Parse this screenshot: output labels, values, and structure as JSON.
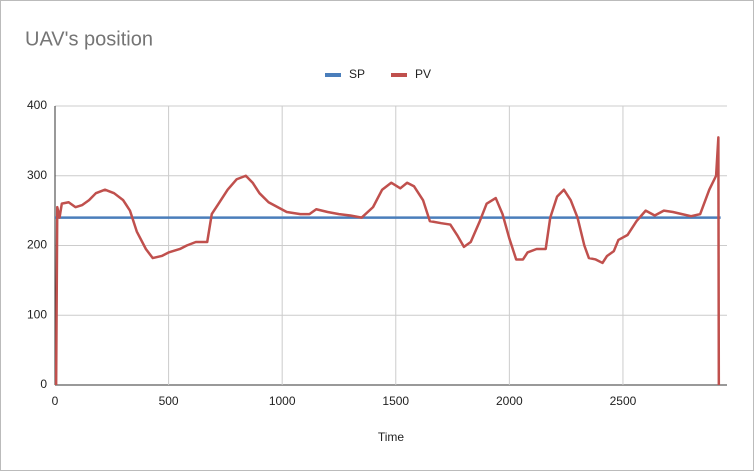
{
  "chart_data": {
    "type": "line",
    "title": "UAV's position",
    "x_label": "Time",
    "series": [
      {
        "name": "SP",
        "color": "#4a7ebb",
        "x": [
          0,
          2930
        ],
        "values": [
          240,
          240
        ]
      },
      {
        "name": "PV",
        "color": "#c0504d",
        "x": [
          5,
          10,
          20,
          30,
          60,
          90,
          120,
          150,
          180,
          220,
          260,
          300,
          330,
          360,
          400,
          430,
          470,
          500,
          550,
          580,
          620,
          670,
          690,
          720,
          760,
          800,
          840,
          870,
          900,
          940,
          980,
          1020,
          1080,
          1120,
          1150,
          1200,
          1250,
          1300,
          1350,
          1400,
          1440,
          1480,
          1520,
          1550,
          1580,
          1620,
          1650,
          1700,
          1740,
          1770,
          1800,
          1830,
          1870,
          1900,
          1940,
          1970,
          2000,
          2030,
          2060,
          2080,
          2120,
          2160,
          2180,
          2210,
          2240,
          2270,
          2300,
          2330,
          2350,
          2380,
          2410,
          2430,
          2460,
          2480,
          2520,
          2560,
          2600,
          2640,
          2680,
          2720,
          2760,
          2800,
          2840,
          2880,
          2910,
          2920,
          2922
        ],
        "values": [
          0,
          255,
          240,
          260,
          262,
          255,
          258,
          265,
          275,
          280,
          275,
          265,
          250,
          220,
          195,
          182,
          185,
          190,
          195,
          200,
          205,
          205,
          245,
          260,
          280,
          295,
          300,
          290,
          275,
          262,
          255,
          248,
          245,
          245,
          252,
          248,
          245,
          243,
          240,
          255,
          280,
          290,
          282,
          290,
          285,
          265,
          235,
          232,
          230,
          215,
          198,
          205,
          235,
          260,
          268,
          245,
          210,
          180,
          180,
          190,
          195,
          195,
          240,
          270,
          280,
          265,
          240,
          200,
          182,
          180,
          175,
          185,
          192,
          208,
          215,
          235,
          250,
          243,
          250,
          248,
          245,
          242,
          245,
          280,
          300,
          355,
          0
        ]
      }
    ],
    "xlim": [
      0,
      2958
    ],
    "xticks": [
      0,
      500,
      1000,
      1500,
      2000,
      2500
    ],
    "ylim": [
      0,
      400
    ],
    "yticks": [
      0,
      100,
      200,
      300,
      400
    ],
    "grid": true,
    "legend": "top"
  }
}
